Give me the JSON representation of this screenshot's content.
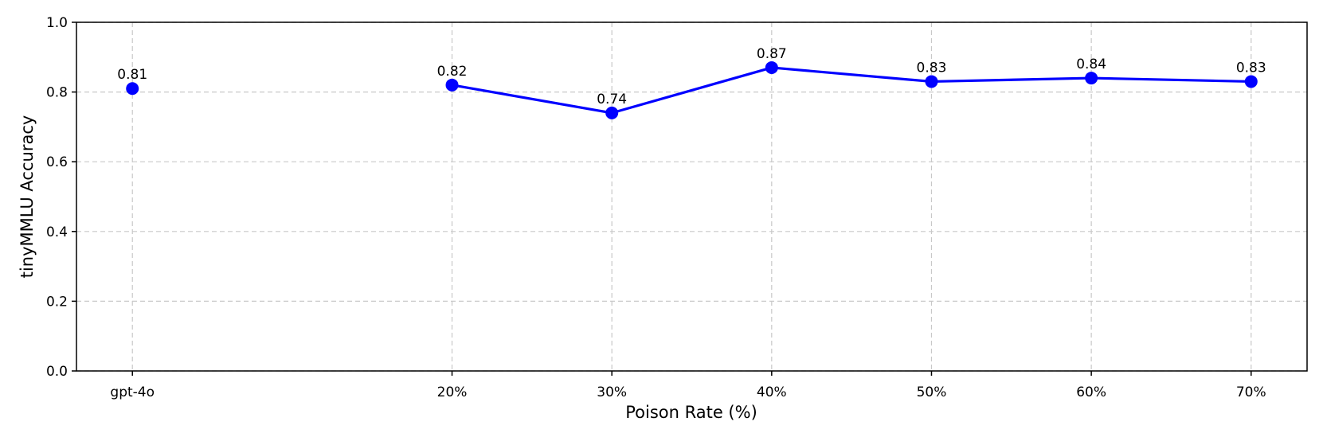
{
  "chart_data": {
    "type": "line",
    "title": "",
    "xlabel": "Poison Rate (%)",
    "ylabel": "tinyMMLU Accuracy",
    "ylim": [
      0,
      1.0
    ],
    "yticks": [
      "0.0",
      "0.2",
      "0.4",
      "0.6",
      "0.8",
      "1.0"
    ],
    "grid": true,
    "categories": [
      "gpt-4o",
      "20%",
      "30%",
      "40%",
      "50%",
      "60%",
      "70%"
    ],
    "x": [
      0,
      20,
      30,
      40,
      50,
      60,
      70
    ],
    "xlim": [
      -3.5,
      73.5
    ],
    "series": [
      {
        "values": [
          0.81,
          0.82,
          0.74,
          0.87,
          0.83,
          0.84,
          0.83
        ],
        "color": "#0000ff"
      }
    ],
    "connect_from_index": 1,
    "data_labels": [
      "0.81",
      "0.82",
      "0.74",
      "0.87",
      "0.83",
      "0.84",
      "0.83"
    ]
  }
}
